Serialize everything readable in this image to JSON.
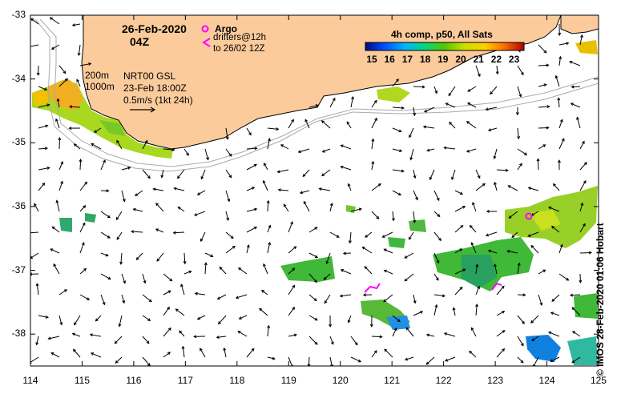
{
  "title_date": "26-Feb-2020",
  "title_time": "04Z",
  "legend": {
    "argo_label": "Argo",
    "drifters_line1": "drifters@12h",
    "drifters_line2": "to 26/02 12Z",
    "argo_color": "#ff00ff"
  },
  "isobaths": {
    "label_200": "200m",
    "label_1000": "1000m"
  },
  "currents": {
    "source": "NRT00 GSL",
    "timestamp": "23-Feb 18:00Z",
    "scale_label": "0.5m/s (1kt 24h)"
  },
  "colorbar": {
    "title": "4h comp, p50, All Sats",
    "ticks": [
      "15",
      "16",
      "17",
      "18",
      "19",
      "20",
      "21",
      "22",
      "23"
    ],
    "min": 15,
    "max": 23.5
  },
  "credit": "© IMOS 28-Feb-2020 01:06 Hobart",
  "axes": {
    "x_ticks": [
      "114",
      "115",
      "116",
      "117",
      "118",
      "119",
      "120",
      "121",
      "122",
      "123",
      "124",
      "125"
    ],
    "y_ticks": [
      "-33",
      "-34",
      "-35",
      "-36",
      "-37",
      "-38"
    ],
    "lon_range": [
      114,
      125
    ],
    "lat_range": [
      -38.5,
      -33
    ]
  },
  "colors": {
    "land": "#fbcb9b",
    "isobath": "#aaaaaa",
    "argo": "#ff00ff"
  }
}
